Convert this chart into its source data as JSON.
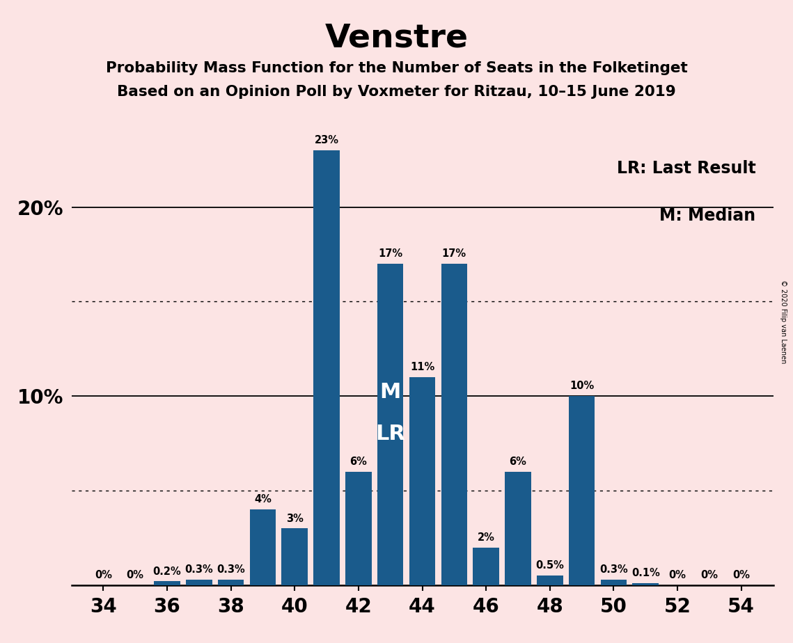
{
  "title": "Venstre",
  "subtitle1": "Probability Mass Function for the Number of Seats in the Folketinget",
  "subtitle2": "Based on an Opinion Poll by Voxmeter for Ritzau, 10–15 June 2019",
  "copyright": "© 2020 Filip van Laenen",
  "legend_lr": "LR: Last Result",
  "legend_m": "M: Median",
  "seats": [
    34,
    35,
    36,
    37,
    38,
    39,
    40,
    41,
    42,
    43,
    44,
    45,
    46,
    47,
    48,
    49,
    50,
    51,
    52,
    53,
    54
  ],
  "probabilities": [
    0.0,
    0.0,
    0.2,
    0.3,
    0.3,
    4.0,
    3.0,
    23.0,
    6.0,
    17.0,
    11.0,
    17.0,
    2.0,
    6.0,
    0.5,
    10.0,
    0.3,
    0.1,
    0.0,
    0.0,
    0.0
  ],
  "bar_color": "#1a5b8c",
  "background_color": "#fce4e4",
  "median_seat": 43,
  "lr_seat": 43,
  "label_map": {
    "34": "0%",
    "35": "0%",
    "36": "0.2%",
    "37": "0.3%",
    "38": "0.3%",
    "39": "4%",
    "40": "3%",
    "41": "23%",
    "42": "6%",
    "43": "17%",
    "44": "11%",
    "45": "17%",
    "46": "2%",
    "47": "6%",
    "48": "0.5%",
    "49": "10%",
    "50": "0.3%",
    "51": "0.1%",
    "52": "0%",
    "53": "0%",
    "54": "0%"
  },
  "xlim": [
    33.0,
    55.0
  ],
  "ylim": [
    0,
    25
  ],
  "solid_gridlines": [
    10.0,
    20.0
  ],
  "dotted_gridlines": [
    5.0,
    15.0
  ],
  "ytick_labeled": {
    "10": "10%",
    "20": "20%"
  },
  "label_fontsize": 10.5,
  "title_fontsize": 34,
  "subtitle_fontsize": 15.5,
  "axis_tick_fontsize": 20,
  "legend_fontsize": 17,
  "m_lr_fontsize": 22,
  "bar_width": 0.82
}
